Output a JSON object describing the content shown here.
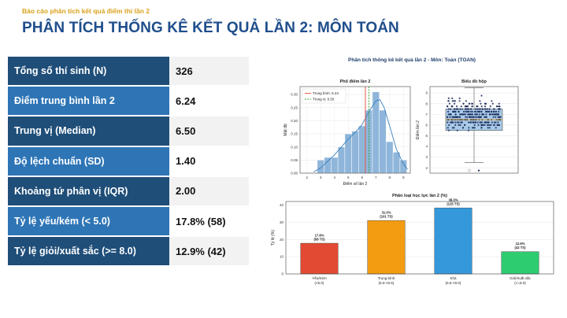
{
  "header": {
    "subtitle": "Báo cáo phân tích kết quả điểm thi lần 2",
    "title": "PHÂN TÍCH THỐNG KÊ KẾT QUẢ LẦN 2: MÔN TOÁN"
  },
  "stats": [
    {
      "label": "Tổng số thí sinh (N)",
      "value": "326"
    },
    {
      "label": "Điểm trung bình lần 2",
      "value": "6.24"
    },
    {
      "label": "Trung vị (Median)",
      "value": "6.50"
    },
    {
      "label": "Độ lệch chuẩn (SD)",
      "value": "1.40"
    },
    {
      "label": "Khoảng tứ phân vị (IQR)",
      "value": "2.00"
    },
    {
      "label": "Tỷ lệ yếu/kém (< 5.0)",
      "value": "17.8% (58)"
    },
    {
      "label": "Tỷ lệ giỏi/xuất sắc (>= 8.0)",
      "value": "12.9% (42)"
    }
  ],
  "colors": {
    "header_dark": "#1f4e79",
    "header_light": "#2e75b6",
    "title": "#1f4e8c",
    "subtitle": "#d9a21b"
  },
  "figure": {
    "suptitle": "Phân tích thống kê kết quả lần 2 - Môn: Toán (TOAN)"
  },
  "chart_data": [
    {
      "type": "bar",
      "title": "Phổ điểm lần 2",
      "xlabel": "Điểm số lần 2",
      "ylabel": "Mật độ",
      "xlim": [
        1.5,
        9.5
      ],
      "ylim": [
        0,
        0.33
      ],
      "x_ticks": [
        "2",
        "3",
        "4",
        "5",
        "6",
        "7",
        "8",
        "9"
      ],
      "y_ticks": [
        "0.00",
        "0.05",
        "0.10",
        "0.15",
        "0.20",
        "0.25",
        "0.30"
      ],
      "bins": [
        {
          "x0": 2.75,
          "x1": 3.25,
          "value": 0.05
        },
        {
          "x0": 3.25,
          "x1": 3.75,
          "value": 0.06
        },
        {
          "x0": 3.75,
          "x1": 4.25,
          "value": 0.06
        },
        {
          "x0": 4.25,
          "x1": 4.75,
          "value": 0.1
        },
        {
          "x0": 4.75,
          "x1": 5.25,
          "value": 0.15
        },
        {
          "x0": 5.25,
          "x1": 5.75,
          "value": 0.16
        },
        {
          "x0": 5.75,
          "x1": 6.25,
          "value": 0.18
        },
        {
          "x0": 6.25,
          "x1": 6.75,
          "value": 0.24
        },
        {
          "x0": 6.75,
          "x1": 7.25,
          "value": 0.31
        },
        {
          "x0": 7.25,
          "x1": 7.75,
          "value": 0.24
        },
        {
          "x0": 7.75,
          "x1": 8.25,
          "value": 0.12
        },
        {
          "x0": 8.25,
          "x1": 8.75,
          "value": 0.08
        },
        {
          "x0": 8.75,
          "x1": 9.25,
          "value": 0.05
        }
      ],
      "kde": [
        [
          2.5,
          0.005
        ],
        [
          3,
          0.02
        ],
        [
          3.5,
          0.045
        ],
        [
          4,
          0.07
        ],
        [
          4.5,
          0.1
        ],
        [
          5,
          0.13
        ],
        [
          5.5,
          0.155
        ],
        [
          6,
          0.185
        ],
        [
          6.5,
          0.235
        ],
        [
          7,
          0.275
        ],
        [
          7.3,
          0.28
        ],
        [
          7.6,
          0.25
        ],
        [
          8,
          0.18
        ],
        [
          8.5,
          0.09
        ],
        [
          9,
          0.035
        ],
        [
          9.3,
          0.015
        ]
      ],
      "mean": 6.24,
      "median": 6.5,
      "legend": [
        "Trung bình: 6.24",
        "Trung vị: 6.50"
      ],
      "legend_position": "top-left"
    },
    {
      "type": "scatter",
      "title": "Biểu đồ hộp",
      "ylabel": "Điểm lần 2",
      "ylim": [
        1.5,
        9.6
      ],
      "y_ticks": [
        "2",
        "3",
        "4",
        "5",
        "6",
        "7",
        "8",
        "9"
      ],
      "box": {
        "q1": 5.5,
        "median": 6.5,
        "q3": 7.5,
        "whisker_low": 2.5,
        "whisker_high": 9.5
      },
      "outliers": [
        1.75
      ]
    },
    {
      "type": "bar",
      "title": "Phân loại học lực lần 2 (%)",
      "ylabel": "Tỷ lệ (%)",
      "ylim": [
        0,
        42
      ],
      "y_ticks": [
        "0",
        "10",
        "20",
        "30",
        "40"
      ],
      "categories": [
        {
          "name": "Yếu/Kém",
          "range": "(<5.0)",
          "value": 17.8,
          "label_pct": "17.8%",
          "label_n": "(58 TS)",
          "color": "#e34a33"
        },
        {
          "name": "Trung bình",
          "range": "(5.0-<6.5)",
          "value": 31.0,
          "label_pct": "31.0%",
          "label_n": "(101 TS)",
          "color": "#f39c12"
        },
        {
          "name": "Khá",
          "range": "(6.5-<8.0)",
          "value": 38.3,
          "label_pct": "38.3%",
          "label_n": "(125 TS)",
          "color": "#3498db"
        },
        {
          "name": "Giỏi/Xuất sắc",
          "range": "(>=8.0)",
          "value": 12.9,
          "label_pct": "12.9%",
          "label_n": "(42 TS)",
          "color": "#2ecc71"
        }
      ]
    }
  ]
}
